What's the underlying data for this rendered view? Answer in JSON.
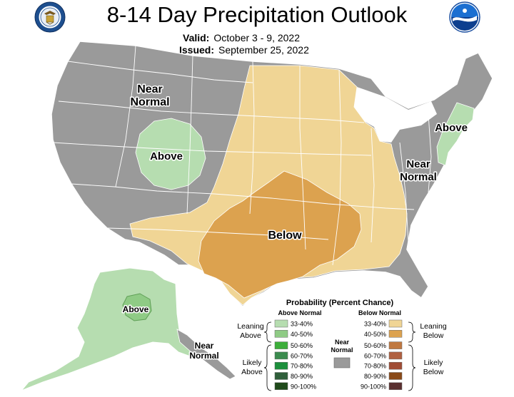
{
  "header": {
    "title": "8-14 Day Precipitation Outlook",
    "valid_label": "Valid:",
    "valid_value": "October 3 - 9, 2022",
    "issued_label": "Issued:",
    "issued_value": "September 25, 2022",
    "left_logo": "doc-seal-icon",
    "right_logo": "noaa-logo-icon"
  },
  "colors": {
    "near_normal": "#9a9a9a",
    "above_33_40": "#b6ddb0",
    "above_40_50": "#8fcb85",
    "below_33_40": "#f0d595",
    "below_40_50": "#dca24f",
    "border": "#ffffff"
  },
  "map_labels": {
    "west_near_normal_line1": "Near",
    "west_near_normal_line2": "Normal",
    "rockies_above": "Above",
    "southcentral_below": "Below",
    "northeast_above": "Above",
    "east_near_normal_line1": "Near",
    "east_near_normal_line2": "Normal",
    "alaska_above": "Above",
    "alaska_near_normal_line1": "Near",
    "alaska_near_normal_line2": "Normal"
  },
  "legend": {
    "title": "Probability (Percent Chance)",
    "above_header": "Above Normal",
    "below_header": "Below Normal",
    "near_normal_line1": "Near",
    "near_normal_line2": "Normal",
    "leaning_above_line1": "Leaning",
    "leaning_above_line2": "Above",
    "likely_above_line1": "Likely",
    "likely_above_line2": "Above",
    "leaning_below_line1": "Leaning",
    "leaning_below_line2": "Below",
    "likely_below_line1": "Likely",
    "likely_below_line2": "Below",
    "above_bins": [
      {
        "label": "33-40%",
        "color": "#b6ddb0"
      },
      {
        "label": "40-50%",
        "color": "#8fcb85"
      },
      {
        "label": "50-60%",
        "color": "#3cae3a"
      },
      {
        "label": "60-70%",
        "color": "#3b8b4e"
      },
      {
        "label": "70-80%",
        "color": "#1c8f3b"
      },
      {
        "label": "80-90%",
        "color": "#2f5e3a"
      },
      {
        "label": "90-100%",
        "color": "#1f4a1a"
      }
    ],
    "below_bins": [
      {
        "label": "33-40%",
        "color": "#f0d595"
      },
      {
        "label": "40-50%",
        "color": "#dca24f"
      },
      {
        "label": "50-60%",
        "color": "#c07840"
      },
      {
        "label": "60-70%",
        "color": "#b06040"
      },
      {
        "label": "70-80%",
        "color": "#a04c34"
      },
      {
        "label": "80-90%",
        "color": "#8a4a18"
      },
      {
        "label": "90-100%",
        "color": "#5a3030"
      }
    ]
  }
}
